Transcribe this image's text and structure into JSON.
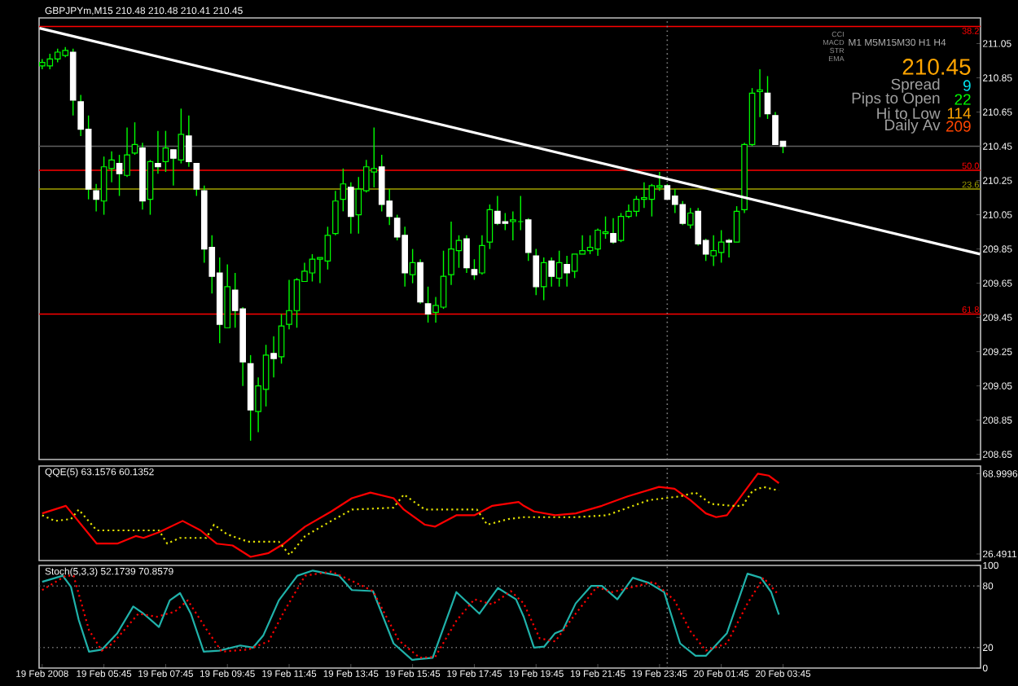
{
  "chart_data": [
    {
      "type": "candlestick",
      "title": "GBPJPYm,M15 210.48 210.48 210.41 210.45",
      "x": [
        "2008-02-19T03:45",
        "2008-02-19T04:00",
        "2008-02-19T04:15",
        "2008-02-19T04:30",
        "2008-02-19T04:45",
        "2008-02-19T05:00",
        "2008-02-19T05:15",
        "2008-02-19T05:30",
        "2008-02-19T05:45",
        "2008-02-19T06:00",
        "2008-02-19T06:15",
        "2008-02-19T06:30",
        "2008-02-19T06:45",
        "2008-02-19T07:00",
        "2008-02-19T07:15",
        "2008-02-19T07:30",
        "2008-02-19T07:45",
        "2008-02-19T08:00",
        "2008-02-19T08:15",
        "2008-02-19T08:30",
        "2008-02-19T08:45",
        "2008-02-19T09:00",
        "2008-02-19T09:15",
        "2008-02-19T09:30",
        "2008-02-19T09:45",
        "2008-02-19T10:00",
        "2008-02-19T10:15",
        "2008-02-19T10:30",
        "2008-02-19T10:45",
        "2008-02-19T11:00",
        "2008-02-19T11:15",
        "2008-02-19T11:30",
        "2008-02-19T11:45",
        "2008-02-19T12:00",
        "2008-02-19T12:15",
        "2008-02-19T12:30",
        "2008-02-19T12:45",
        "2008-02-19T13:00",
        "2008-02-19T13:15",
        "2008-02-19T13:30",
        "2008-02-19T13:45",
        "2008-02-19T14:00",
        "2008-02-19T14:15",
        "2008-02-19T14:30",
        "2008-02-19T14:45",
        "2008-02-19T15:00",
        "2008-02-19T15:15",
        "2008-02-19T15:30",
        "2008-02-19T15:45",
        "2008-02-19T16:00",
        "2008-02-19T16:15",
        "2008-02-19T16:30",
        "2008-02-19T16:45",
        "2008-02-19T17:00",
        "2008-02-19T17:15",
        "2008-02-19T17:30",
        "2008-02-19T17:45",
        "2008-02-19T18:00",
        "2008-02-19T18:15",
        "2008-02-19T18:30",
        "2008-02-19T18:45",
        "2008-02-19T19:00",
        "2008-02-19T19:15",
        "2008-02-19T19:30",
        "2008-02-19T19:45",
        "2008-02-19T20:00",
        "2008-02-19T20:15",
        "2008-02-19T20:30",
        "2008-02-19T20:45",
        "2008-02-19T21:00",
        "2008-02-19T21:15",
        "2008-02-19T21:30",
        "2008-02-19T21:45",
        "2008-02-19T22:00",
        "2008-02-19T22:15",
        "2008-02-19T22:30",
        "2008-02-19T22:45",
        "2008-02-19T23:00",
        "2008-02-19T23:15",
        "2008-02-19T23:30",
        "2008-02-19T23:45",
        "2008-02-20T00:00",
        "2008-02-20T00:15",
        "2008-02-20T00:30",
        "2008-02-20T00:45",
        "2008-02-20T01:00",
        "2008-02-20T01:15",
        "2008-02-20T01:30",
        "2008-02-20T01:45",
        "2008-02-20T02:00",
        "2008-02-20T02:15",
        "2008-02-20T02:30",
        "2008-02-20T02:45",
        "2008-02-20T03:00",
        "2008-02-20T03:15",
        "2008-02-20T03:30",
        "2008-02-20T03:45"
      ],
      "ohlc": [
        [
          210.92,
          210.96,
          210.9,
          210.94
        ],
        [
          210.92,
          210.99,
          210.9,
          210.96
        ],
        [
          210.96,
          211.02,
          210.94,
          211.0
        ],
        [
          210.98,
          211.03,
          210.97,
          211.01
        ],
        [
          211.0,
          211.02,
          210.63,
          210.72
        ],
        [
          210.71,
          210.75,
          210.51,
          210.55
        ],
        [
          210.55,
          210.63,
          210.14,
          210.2
        ],
        [
          210.19,
          210.23,
          210.07,
          210.14
        ],
        [
          210.13,
          210.39,
          210.05,
          210.33
        ],
        [
          210.32,
          210.42,
          210.24,
          210.37
        ],
        [
          210.35,
          210.4,
          210.16,
          210.29
        ],
        [
          210.28,
          210.56,
          210.27,
          210.4
        ],
        [
          210.41,
          210.59,
          210.4,
          210.46
        ],
        [
          210.44,
          210.47,
          210.08,
          210.13
        ],
        [
          210.14,
          210.37,
          210.05,
          210.36
        ],
        [
          210.35,
          210.54,
          210.29,
          210.33
        ],
        [
          210.36,
          210.54,
          210.3,
          210.44
        ],
        [
          210.43,
          210.43,
          210.22,
          210.38
        ],
        [
          210.37,
          210.67,
          210.35,
          210.52
        ],
        [
          210.51,
          210.63,
          210.33,
          210.36
        ],
        [
          210.35,
          210.35,
          210.16,
          210.2
        ],
        [
          210.19,
          210.22,
          209.77,
          209.85
        ],
        [
          209.86,
          209.93,
          209.59,
          209.69
        ],
        [
          209.71,
          209.8,
          209.3,
          209.41
        ],
        [
          209.39,
          209.76,
          209.39,
          209.63
        ],
        [
          209.61,
          209.71,
          209.39,
          209.49
        ],
        [
          209.5,
          209.51,
          209.05,
          209.19
        ],
        [
          209.18,
          209.23,
          208.73,
          208.91
        ],
        [
          208.9,
          209.1,
          208.78,
          209.05
        ],
        [
          209.03,
          209.29,
          208.93,
          209.23
        ],
        [
          209.24,
          209.34,
          209.1,
          209.21
        ],
        [
          209.22,
          209.47,
          209.18,
          209.4
        ],
        [
          209.41,
          209.67,
          209.38,
          209.49
        ],
        [
          209.49,
          209.68,
          209.39,
          209.67
        ],
        [
          209.66,
          209.77,
          209.66,
          209.72
        ],
        [
          209.71,
          209.82,
          209.66,
          209.79
        ],
        [
          209.79,
          209.8,
          209.65,
          209.8
        ],
        [
          209.78,
          209.98,
          209.73,
          209.93
        ],
        [
          209.94,
          210.19,
          209.93,
          210.13
        ],
        [
          210.14,
          210.32,
          210.07,
          210.23
        ],
        [
          210.21,
          210.24,
          209.94,
          210.04
        ],
        [
          210.05,
          210.27,
          209.94,
          210.2
        ],
        [
          210.19,
          210.37,
          210.18,
          210.33
        ],
        [
          210.3,
          210.56,
          210.21,
          210.32
        ],
        [
          210.33,
          210.4,
          210.07,
          210.11
        ],
        [
          210.13,
          210.2,
          209.99,
          210.04
        ],
        [
          210.03,
          210.05,
          209.9,
          209.92
        ],
        [
          209.93,
          209.98,
          209.63,
          209.71
        ],
        [
          209.7,
          209.85,
          209.65,
          209.77
        ],
        [
          209.77,
          209.79,
          209.53,
          209.54
        ],
        [
          209.53,
          209.63,
          209.42,
          209.47
        ],
        [
          209.48,
          209.57,
          209.42,
          209.52
        ],
        [
          209.51,
          209.84,
          209.5,
          209.69
        ],
        [
          209.7,
          210.01,
          209.64,
          209.85
        ],
        [
          209.84,
          209.93,
          209.74,
          209.9
        ],
        [
          209.91,
          209.93,
          209.71,
          209.74
        ],
        [
          209.73,
          209.79,
          209.67,
          209.7
        ],
        [
          209.71,
          209.93,
          209.7,
          209.87
        ],
        [
          209.89,
          210.11,
          209.85,
          210.08
        ],
        [
          210.07,
          210.16,
          209.99,
          210.0
        ],
        [
          210.01,
          210.06,
          209.96,
          210.0
        ],
        [
          210.01,
          210.07,
          209.9,
          210.02
        ],
        [
          210.01,
          210.16,
          209.96,
          210.01
        ],
        [
          210.02,
          210.03,
          209.78,
          209.83
        ],
        [
          209.81,
          209.85,
          209.58,
          209.63
        ],
        [
          209.63,
          209.8,
          209.55,
          209.77
        ],
        [
          209.78,
          209.8,
          209.63,
          209.69
        ],
        [
          209.68,
          209.84,
          209.63,
          209.77
        ],
        [
          209.76,
          209.81,
          209.63,
          209.71
        ],
        [
          209.72,
          209.82,
          209.68,
          209.82
        ],
        [
          209.82,
          209.93,
          209.82,
          209.84
        ],
        [
          209.84,
          209.93,
          209.82,
          209.86
        ],
        [
          209.85,
          209.97,
          209.81,
          209.96
        ],
        [
          209.94,
          210.04,
          209.91,
          209.95
        ],
        [
          209.94,
          210.03,
          209.88,
          209.89
        ],
        [
          209.9,
          210.06,
          209.89,
          210.04
        ],
        [
          210.04,
          210.11,
          210.03,
          210.07
        ],
        [
          210.07,
          210.16,
          210.04,
          210.14
        ],
        [
          210.14,
          210.24,
          210.09,
          210.15
        ],
        [
          210.14,
          210.23,
          210.04,
          210.22
        ],
        [
          210.21,
          210.3,
          210.19,
          210.22
        ],
        [
          210.22,
          210.23,
          210.14,
          210.14
        ],
        [
          210.16,
          210.2,
          210.06,
          210.11
        ],
        [
          210.11,
          210.13,
          209.99,
          210.0
        ],
        [
          209.99,
          210.09,
          209.97,
          210.06
        ],
        [
          210.07,
          210.09,
          209.87,
          209.88
        ],
        [
          209.9,
          209.91,
          209.78,
          209.82
        ],
        [
          209.81,
          209.93,
          209.75,
          209.84
        ],
        [
          209.83,
          209.96,
          209.77,
          209.89
        ],
        [
          209.9,
          209.91,
          209.8,
          209.89
        ],
        [
          209.89,
          210.1,
          209.89,
          210.07
        ],
        [
          210.08,
          210.47,
          210.06,
          210.46
        ],
        [
          210.46,
          210.79,
          210.45,
          210.76
        ],
        [
          210.77,
          210.9,
          210.62,
          210.78
        ],
        [
          210.76,
          210.86,
          210.61,
          210.64
        ],
        [
          210.63,
          210.65,
          210.46,
          210.46
        ],
        [
          210.48,
          210.48,
          210.41,
          210.45
        ]
      ],
      "series": [
        {
          "type": "line",
          "color": "#ffffff",
          "x": [
            "2008-02-19T03:40",
            "2008-02-20T10:08"
          ],
          "values": [
            211.14,
            209.82
          ]
        }
      ],
      "xlim": [
        "2008-02-19T03:39",
        "2008-02-20T10:09"
      ],
      "ylim": [
        208.62,
        211.2
      ],
      "yticks": [
        208.65,
        208.85,
        209.05,
        209.25,
        209.45,
        209.65,
        209.85,
        210.05,
        210.25,
        210.45,
        210.65,
        210.85,
        211.05
      ],
      "tick_labels": "y",
      "ref_lines": [
        {
          "axis": "y",
          "value": 211.15,
          "color": "#ff0000"
        },
        {
          "axis": "y",
          "value": 210.31,
          "color": "#ff0000"
        },
        {
          "axis": "y",
          "value": 210.2,
          "color": "#a0a000"
        },
        {
          "axis": "y",
          "value": 209.47,
          "color": "#ff0000"
        },
        {
          "axis": "y",
          "value": 210.45,
          "color": "#606060"
        },
        {
          "axis": "x",
          "value": "2008-02-20T00:00",
          "color": "#808080",
          "line_style": "dotted"
        }
      ],
      "annotations": [
        "M1 M5M15M30 H1 H4",
        "CCI",
        "MACD",
        "STR",
        "EMA",
        "210.45",
        "Spread",
        "9",
        "Pips to Open",
        "22",
        "Hi to Low",
        "114",
        "Daily Av",
        "209",
        {
          "text": "38.2",
          "x": "2008-02-20T10:09",
          "y": 211.15
        },
        {
          "text": "50.0",
          "x": "2008-02-20T10:09",
          "y": 210.31
        },
        {
          "text": "23.6",
          "x": "2008-02-20T10:09",
          "y": 210.2
        },
        {
          "text": "61.8",
          "x": "2008-02-20T10:09",
          "y": 209.47
        }
      ]
    },
    {
      "type": "line",
      "title": "QQE(5) 63.1576 60.1352",
      "series": [
        {
          "color": "#ff0000",
          "x": [
            "2008-02-19T03:45",
            "2008-02-19T04:31",
            "2008-02-19T05:31",
            "2008-02-19T06:11",
            "2008-02-19T06:47",
            "2008-02-19T07:02",
            "2008-02-19T07:32",
            "2008-02-19T08:18",
            "2008-02-19T08:53",
            "2008-02-19T09:24",
            "2008-02-19T09:55",
            "2008-02-19T10:30",
            "2008-02-19T11:05",
            "2008-02-19T11:35",
            "2008-02-19T12:16",
            "2008-02-19T13:07",
            "2008-02-19T13:47",
            "2008-02-19T14:23",
            "2008-02-19T15:08",
            "2008-02-19T15:28",
            "2008-02-19T16:09",
            "2008-02-19T16:29",
            "2008-02-19T17:10",
            "2008-02-19T17:45",
            "2008-02-19T18:20",
            "2008-02-19T19:11",
            "2008-02-19T19:21",
            "2008-02-19T19:41",
            "2008-02-19T20:22",
            "2008-02-19T21:02",
            "2008-02-19T21:53",
            "2008-02-19T22:43",
            "2008-02-19T23:44",
            "2008-02-20T00:14",
            "2008-02-20T00:45",
            "2008-02-20T01:15",
            "2008-02-20T01:35",
            "2008-02-20T01:56",
            "2008-02-20T02:26",
            "2008-02-20T02:56",
            "2008-02-20T03:17",
            "2008-02-20T03:37"
          ],
          "values": [
            48,
            52,
            32,
            32,
            36,
            35,
            38,
            44,
            39,
            32,
            31,
            25,
            27,
            32,
            41,
            49,
            56,
            59,
            56,
            50,
            42,
            41,
            47,
            47,
            52,
            54,
            52,
            49,
            47,
            48,
            52,
            57,
            62,
            61,
            55,
            48,
            46,
            47,
            58,
            69,
            68,
            64
          ]
        },
        {
          "color": "#e0e000",
          "line_style": "dotted",
          "x": [
            "2008-02-19T03:45",
            "2008-02-19T04:10",
            "2008-02-19T04:41",
            "2008-02-19T04:56",
            "2008-02-19T05:31",
            "2008-02-19T07:32",
            "2008-02-19T07:48",
            "2008-02-19T08:13",
            "2008-02-19T09:04",
            "2008-02-19T09:19",
            "2008-02-19T09:44",
            "2008-02-19T10:25",
            "2008-02-19T11:25",
            "2008-02-19T11:46",
            "2008-02-19T12:16",
            "2008-02-19T13:07",
            "2008-02-19T13:47",
            "2008-02-19T15:08",
            "2008-02-19T15:28",
            "2008-02-19T16:09",
            "2008-02-19T17:50",
            "2008-02-19T18:10",
            "2008-02-19T18:51",
            "2008-02-19T19:21",
            "2008-02-19T21:02",
            "2008-02-19T22:03",
            "2008-02-19T23:24",
            "2008-02-20T00:25",
            "2008-02-20T00:55",
            "2008-02-20T01:25",
            "2008-02-20T02:06",
            "2008-02-20T02:26",
            "2008-02-20T02:46",
            "2008-02-20T03:07",
            "2008-02-20T03:37"
          ],
          "values": [
            47,
            44,
            45,
            50,
            39,
            39,
            32,
            35,
            35,
            42,
            37,
            33,
            33,
            26,
            36,
            44,
            50,
            51,
            58,
            50,
            50,
            42,
            45,
            46,
            46,
            47,
            55,
            57,
            59,
            53,
            52,
            52,
            60,
            62,
            60
          ]
        }
      ],
      "xlim": [
        "2008-02-19T03:39",
        "2008-02-20T10:09"
      ],
      "ylim": [
        23.04,
        73.05
      ],
      "yticks": [
        26.4911,
        68.9996
      ],
      "tick_labels": "y",
      "ref_lines": [
        {
          "axis": "x",
          "value": "2008-02-20T00:00",
          "color": "#808080",
          "line_style": "dotted"
        }
      ]
    },
    {
      "type": "line",
      "title": "Stoch(5,3,3) 52.1739 70.8579",
      "series": [
        {
          "color": "#20b2aa",
          "x": [
            "2008-02-19T03:45",
            "2008-02-19T04:25",
            "2008-02-19T04:41",
            "2008-02-19T04:56",
            "2008-02-19T05:16",
            "2008-02-19T05:41",
            "2008-02-19T06:11",
            "2008-02-19T06:42",
            "2008-02-19T07:02",
            "2008-02-19T07:32",
            "2008-02-19T07:53",
            "2008-02-19T08:13",
            "2008-02-19T08:34",
            "2008-02-19T08:59",
            "2008-02-19T09:29",
            "2008-02-19T10:10",
            "2008-02-19T10:35",
            "2008-02-19T10:55",
            "2008-02-19T11:25",
            "2008-02-19T12:01",
            "2008-02-19T12:31",
            "2008-02-19T13:22",
            "2008-02-19T13:47",
            "2008-02-19T14:28",
            "2008-02-19T15:08",
            "2008-02-19T15:44",
            "2008-02-19T16:24",
            "2008-02-19T17:10",
            "2008-02-19T17:55",
            "2008-02-19T18:31",
            "2008-02-19T19:06",
            "2008-02-19T19:21",
            "2008-02-19T19:41",
            "2008-02-19T20:01",
            "2008-02-19T20:22",
            "2008-02-19T20:37",
            "2008-02-19T21:02",
            "2008-02-19T21:32",
            "2008-02-19T21:53",
            "2008-02-19T22:23",
            "2008-02-19T22:53",
            "2008-02-19T23:24",
            "2008-02-19T23:54",
            "2008-02-20T00:25",
            "2008-02-20T00:55",
            "2008-02-20T01:15",
            "2008-02-20T01:56",
            "2008-02-20T02:36",
            "2008-02-20T03:02",
            "2008-02-20T03:22",
            "2008-02-20T03:37"
          ],
          "values": [
            84,
            90,
            79,
            47,
            16,
            18,
            34,
            60,
            53,
            40,
            66,
            73,
            53,
            16,
            17,
            22,
            20,
            32,
            66,
            90,
            95,
            90,
            76,
            75,
            24,
            8,
            10,
            74,
            53,
            78,
            67,
            50,
            20,
            21,
            34,
            37,
            63,
            80,
            80,
            67,
            88,
            83,
            74,
            24,
            12,
            12,
            34,
            92,
            88,
            74,
            52
          ]
        },
        {
          "color": "#ff0000",
          "line_style": "dotted",
          "x": [
            "2008-02-19T03:45",
            "2008-02-19T04:31",
            "2008-02-19T04:46",
            "2008-02-19T05:16",
            "2008-02-19T05:41",
            "2008-02-19T06:02",
            "2008-02-19T06:52",
            "2008-02-19T07:28",
            "2008-02-19T08:03",
            "2008-02-19T08:28",
            "2008-02-19T09:04",
            "2008-02-19T09:34",
            "2008-02-19T10:25",
            "2008-02-19T11:05",
            "2008-02-19T11:35",
            "2008-02-19T12:16",
            "2008-02-19T13:07",
            "2008-02-19T13:47",
            "2008-02-19T14:28",
            "2008-02-19T15:18",
            "2008-02-19T15:59",
            "2008-02-19T16:29",
            "2008-02-19T17:10",
            "2008-02-19T17:45",
            "2008-02-19T18:20",
            "2008-02-19T18:56",
            "2008-02-19T19:21",
            "2008-02-19T19:52",
            "2008-02-19T20:22",
            "2008-02-19T21:02",
            "2008-02-19T21:43",
            "2008-02-19T22:13",
            "2008-02-19T22:53",
            "2008-02-19T23:34",
            "2008-02-20T00:14",
            "2008-02-20T00:45",
            "2008-02-20T01:15",
            "2008-02-20T01:56",
            "2008-02-20T02:36",
            "2008-02-20T03:07",
            "2008-02-20T03:37"
          ],
          "values": [
            76,
            90,
            90,
            37,
            17,
            24,
            53,
            50,
            55,
            66,
            38,
            16,
            18,
            26,
            55,
            90,
            94,
            85,
            75,
            27,
            10,
            11,
            46,
            67,
            62,
            75,
            63,
            29,
            26,
            53,
            79,
            74,
            79,
            84,
            66,
            36,
            17,
            24,
            63,
            88,
            71
          ]
        }
      ],
      "xlim": [
        "2008-02-19T03:39",
        "2008-02-20T10:09"
      ],
      "ylim": [
        0,
        100
      ],
      "yticks": [
        0,
        20,
        80,
        100
      ],
      "xticks": [
        {
          "value": "2008-02-19T03:45",
          "label": "19 Feb 2008"
        },
        {
          "value": "2008-02-19T05:45",
          "label": "19 Feb 05:45"
        },
        {
          "value": "2008-02-19T07:45",
          "label": "19 Feb 07:45"
        },
        {
          "value": "2008-02-19T09:45",
          "label": "19 Feb 09:45"
        },
        {
          "value": "2008-02-19T11:45",
          "label": "19 Feb 11:45"
        },
        {
          "value": "2008-02-19T13:45",
          "label": "19 Feb 13:45"
        },
        {
          "value": "2008-02-19T15:45",
          "label": "19 Feb 15:45"
        },
        {
          "value": "2008-02-19T17:45",
          "label": "19 Feb 17:45"
        },
        {
          "value": "2008-02-19T19:45",
          "label": "19 Feb 19:45"
        },
        {
          "value": "2008-02-19T21:45",
          "label": "19 Feb 21:45"
        },
        {
          "value": "2008-02-19T23:45",
          "label": "19 Feb 23:45"
        },
        {
          "value": "2008-02-20T01:45",
          "label": "20 Feb 01:45"
        },
        {
          "value": "2008-02-20T03:45",
          "label": "20 Feb 03:45"
        }
      ],
      "ref_lines": [
        {
          "axis": "y",
          "value": 20,
          "color": "#808080",
          "line_style": "dotted"
        },
        {
          "axis": "y",
          "value": 80,
          "color": "#808080",
          "line_style": "dotted"
        },
        {
          "axis": "x",
          "value": "2008-02-20T00:00",
          "color": "#808080",
          "line_style": "dotted"
        }
      ]
    }
  ]
}
